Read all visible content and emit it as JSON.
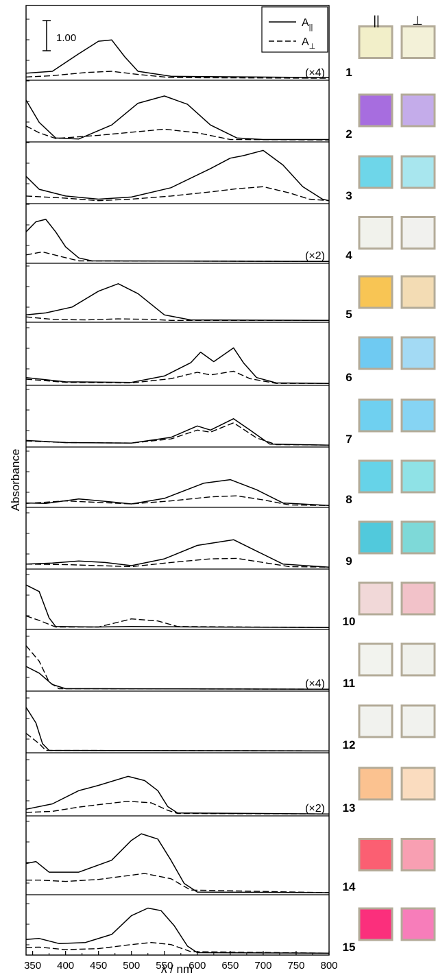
{
  "chart_data": {
    "type": "line",
    "xlabel": "λ / nm",
    "ylabel": "Absorbance",
    "xlim": [
      340,
      800
    ],
    "x_ticks": [
      350,
      400,
      450,
      500,
      550,
      600,
      650,
      700,
      750,
      800
    ],
    "scale_bar_label": "1.00",
    "legend": [
      {
        "label": "A",
        "subscript": "||",
        "style": "solid"
      },
      {
        "label": "A",
        "subscript": "⊥",
        "style": "dashed"
      }
    ],
    "legend_position": "top-right",
    "swatch_headers": [
      "||",
      "⊥"
    ],
    "panels": [
      {
        "label": "1",
        "multiplier": "(×4)",
        "swatch_parallel": "#f2efc9",
        "swatch_perp": "#f3f1d8",
        "par": [
          [
            340,
            0.09
          ],
          [
            380,
            0.12
          ],
          [
            420,
            0.4
          ],
          [
            450,
            0.6
          ],
          [
            470,
            0.62
          ],
          [
            490,
            0.35
          ],
          [
            510,
            0.12
          ],
          [
            560,
            0.04
          ],
          [
            800,
            0.02
          ]
        ],
        "perp": [
          [
            340,
            0.03
          ],
          [
            380,
            0.05
          ],
          [
            430,
            0.1
          ],
          [
            470,
            0.12
          ],
          [
            510,
            0.07
          ],
          [
            560,
            0.02
          ],
          [
            800,
            0.01
          ]
        ]
      },
      {
        "label": "2",
        "multiplier": "",
        "swatch_parallel": "#a76ddf",
        "swatch_perp": "#c4acea",
        "par": [
          [
            340,
            0.78
          ],
          [
            360,
            0.35
          ],
          [
            385,
            0.05
          ],
          [
            420,
            0.03
          ],
          [
            470,
            0.3
          ],
          [
            510,
            0.72
          ],
          [
            550,
            0.86
          ],
          [
            585,
            0.7
          ],
          [
            620,
            0.3
          ],
          [
            660,
            0.05
          ],
          [
            700,
            0.02
          ],
          [
            800,
            0.02
          ]
        ],
        "perp": [
          [
            340,
            0.28
          ],
          [
            360,
            0.15
          ],
          [
            385,
            0.04
          ],
          [
            450,
            0.1
          ],
          [
            550,
            0.22
          ],
          [
            600,
            0.15
          ],
          [
            650,
            0.02
          ],
          [
            800,
            0.01
          ]
        ]
      },
      {
        "label": "3",
        "multiplier": "",
        "swatch_parallel": "#6ed6e9",
        "swatch_perp": "#a8e6ee",
        "par": [
          [
            340,
            0.5
          ],
          [
            360,
            0.25
          ],
          [
            400,
            0.12
          ],
          [
            450,
            0.06
          ],
          [
            500,
            0.1
          ],
          [
            560,
            0.28
          ],
          [
            620,
            0.65
          ],
          [
            650,
            0.85
          ],
          [
            670,
            0.9
          ],
          [
            700,
            1.0
          ],
          [
            730,
            0.72
          ],
          [
            760,
            0.3
          ],
          [
            790,
            0.06
          ],
          [
            800,
            0.03
          ]
        ],
        "perp": [
          [
            340,
            0.12
          ],
          [
            400,
            0.08
          ],
          [
            450,
            0.03
          ],
          [
            500,
            0.06
          ],
          [
            560,
            0.12
          ],
          [
            620,
            0.2
          ],
          [
            660,
            0.26
          ],
          [
            700,
            0.3
          ],
          [
            740,
            0.18
          ],
          [
            770,
            0.06
          ],
          [
            800,
            0.03
          ]
        ]
      },
      {
        "label": "4",
        "multiplier": "(×2)",
        "swatch_parallel": "#f1f2ec",
        "swatch_perp": "#f1f1ee",
        "par": [
          [
            340,
            0.6
          ],
          [
            355,
            0.8
          ],
          [
            370,
            0.85
          ],
          [
            385,
            0.6
          ],
          [
            400,
            0.3
          ],
          [
            420,
            0.08
          ],
          [
            440,
            0.02
          ],
          [
            800,
            0.01
          ]
        ],
        "perp": [
          [
            340,
            0.14
          ],
          [
            365,
            0.2
          ],
          [
            395,
            0.1
          ],
          [
            420,
            0.02
          ],
          [
            800,
            0.01
          ]
        ]
      },
      {
        "label": "5",
        "multiplier": "",
        "swatch_parallel": "#f8c554",
        "swatch_perp": "#f3dcb4",
        "par": [
          [
            340,
            0.12
          ],
          [
            370,
            0.16
          ],
          [
            410,
            0.28
          ],
          [
            450,
            0.6
          ],
          [
            480,
            0.75
          ],
          [
            510,
            0.55
          ],
          [
            550,
            0.12
          ],
          [
            590,
            0.02
          ],
          [
            800,
            0.01
          ]
        ],
        "perp": [
          [
            340,
            0.08
          ],
          [
            380,
            0.03
          ],
          [
            430,
            0.02
          ],
          [
            480,
            0.04
          ],
          [
            530,
            0.03
          ],
          [
            560,
            0.01
          ],
          [
            800,
            0.01
          ]
        ]
      },
      {
        "label": "6",
        "multiplier": "",
        "swatch_parallel": "#6fcaf2",
        "swatch_perp": "#a3daf4",
        "par": [
          [
            340,
            0.12
          ],
          [
            400,
            0.04
          ],
          [
            500,
            0.03
          ],
          [
            550,
            0.15
          ],
          [
            590,
            0.4
          ],
          [
            605,
            0.6
          ],
          [
            625,
            0.42
          ],
          [
            655,
            0.68
          ],
          [
            670,
            0.4
          ],
          [
            690,
            0.12
          ],
          [
            720,
            0.02
          ],
          [
            800,
            0.01
          ]
        ],
        "perp": [
          [
            340,
            0.09
          ],
          [
            400,
            0.03
          ],
          [
            500,
            0.02
          ],
          [
            560,
            0.1
          ],
          [
            600,
            0.22
          ],
          [
            620,
            0.17
          ],
          [
            655,
            0.24
          ],
          [
            680,
            0.1
          ],
          [
            720,
            0.01
          ],
          [
            800,
            0.01
          ]
        ]
      },
      {
        "label": "7",
        "multiplier": "",
        "swatch_parallel": "#6fd0f0",
        "swatch_perp": "#86d4f3",
        "par": [
          [
            340,
            0.1
          ],
          [
            400,
            0.06
          ],
          [
            500,
            0.05
          ],
          [
            560,
            0.16
          ],
          [
            600,
            0.38
          ],
          [
            620,
            0.3
          ],
          [
            655,
            0.52
          ],
          [
            680,
            0.3
          ],
          [
            710,
            0.03
          ],
          [
            800,
            0.01
          ]
        ],
        "perp": [
          [
            340,
            0.09
          ],
          [
            400,
            0.06
          ],
          [
            500,
            0.05
          ],
          [
            560,
            0.13
          ],
          [
            600,
            0.3
          ],
          [
            620,
            0.26
          ],
          [
            655,
            0.44
          ],
          [
            690,
            0.15
          ],
          [
            720,
            0.02
          ],
          [
            800,
            0.01
          ]
        ]
      },
      {
        "label": "8",
        "multiplier": "",
        "swatch_parallel": "#66d3e8",
        "swatch_perp": "#8fe2e6",
        "par": [
          [
            340,
            0.06
          ],
          [
            370,
            0.05
          ],
          [
            420,
            0.14
          ],
          [
            470,
            0.08
          ],
          [
            500,
            0.04
          ],
          [
            550,
            0.15
          ],
          [
            610,
            0.45
          ],
          [
            650,
            0.52
          ],
          [
            690,
            0.32
          ],
          [
            730,
            0.06
          ],
          [
            800,
            0.01
          ]
        ],
        "perp": [
          [
            340,
            0.05
          ],
          [
            400,
            0.1
          ],
          [
            450,
            0.07
          ],
          [
            500,
            0.04
          ],
          [
            560,
            0.1
          ],
          [
            620,
            0.18
          ],
          [
            660,
            0.2
          ],
          [
            700,
            0.12
          ],
          [
            740,
            0.02
          ],
          [
            800,
            0.01
          ]
        ]
      },
      {
        "label": "9",
        "multiplier": "",
        "swatch_parallel": "#51c9dc",
        "swatch_perp": "#7ed9d8",
        "par": [
          [
            340,
            0.07
          ],
          [
            380,
            0.09
          ],
          [
            420,
            0.13
          ],
          [
            460,
            0.1
          ],
          [
            500,
            0.04
          ],
          [
            550,
            0.17
          ],
          [
            600,
            0.43
          ],
          [
            655,
            0.54
          ],
          [
            690,
            0.32
          ],
          [
            730,
            0.07
          ],
          [
            800,
            0.01
          ]
        ],
        "perp": [
          [
            340,
            0.07
          ],
          [
            400,
            0.06
          ],
          [
            450,
            0.04
          ],
          [
            500,
            0.02
          ],
          [
            560,
            0.1
          ],
          [
            620,
            0.17
          ],
          [
            660,
            0.18
          ],
          [
            700,
            0.1
          ],
          [
            740,
            0.02
          ],
          [
            800,
            0.01
          ]
        ]
      },
      {
        "label": "10",
        "multiplier": "",
        "swatch_parallel": "#f1d8d8",
        "swatch_perp": "#f2c2c9",
        "par": [
          [
            340,
            0.85
          ],
          [
            360,
            0.72
          ],
          [
            375,
            0.2
          ],
          [
            385,
            0.03
          ],
          [
            450,
            0.02
          ],
          [
            500,
            0.03
          ],
          [
            600,
            0.02
          ],
          [
            800,
            0.01
          ]
        ],
        "perp": [
          [
            340,
            0.24
          ],
          [
            360,
            0.15
          ],
          [
            385,
            0.02
          ],
          [
            450,
            0.02
          ],
          [
            500,
            0.18
          ],
          [
            540,
            0.14
          ],
          [
            570,
            0.03
          ],
          [
            800,
            0.01
          ]
        ]
      },
      {
        "label": "11",
        "multiplier": "(×4)",
        "swatch_parallel": "#f2f3ee",
        "swatch_perp": "#f0f1ec",
        "par": [
          [
            340,
            0.45
          ],
          [
            360,
            0.32
          ],
          [
            380,
            0.1
          ],
          [
            400,
            0.02
          ],
          [
            800,
            0.01
          ]
        ],
        "perp": [
          [
            340,
            0.85
          ],
          [
            360,
            0.55
          ],
          [
            375,
            0.15
          ],
          [
            390,
            0.02
          ],
          [
            800,
            0.01
          ]
        ]
      },
      {
        "label": "12",
        "multiplier": "",
        "swatch_parallel": "#f1f2ee",
        "swatch_perp": "#f1f2ee",
        "par": [
          [
            340,
            0.85
          ],
          [
            355,
            0.55
          ],
          [
            365,
            0.15
          ],
          [
            375,
            0.02
          ],
          [
            800,
            0.01
          ]
        ],
        "perp": [
          [
            340,
            0.35
          ],
          [
            360,
            0.15
          ],
          [
            370,
            0.02
          ],
          [
            800,
            0.01
          ]
        ]
      },
      {
        "label": "13",
        "multiplier": "(×2)",
        "swatch_parallel": "#fbc290",
        "swatch_perp": "#fadcbf",
        "par": [
          [
            340,
            0.1
          ],
          [
            380,
            0.2
          ],
          [
            420,
            0.45
          ],
          [
            450,
            0.55
          ],
          [
            495,
            0.72
          ],
          [
            520,
            0.64
          ],
          [
            540,
            0.45
          ],
          [
            555,
            0.15
          ],
          [
            570,
            0.03
          ],
          [
            800,
            0.01
          ]
        ],
        "perp": [
          [
            340,
            0.04
          ],
          [
            380,
            0.06
          ],
          [
            420,
            0.14
          ],
          [
            460,
            0.2
          ],
          [
            495,
            0.25
          ],
          [
            530,
            0.22
          ],
          [
            555,
            0.08
          ],
          [
            570,
            0.02
          ],
          [
            800,
            0.01
          ]
        ]
      },
      {
        "label": "14",
        "multiplier": "",
        "swatch_parallel": "#fb5f72",
        "swatch_perp": "#f89fb2",
        "par": [
          [
            340,
            0.45
          ],
          [
            355,
            0.48
          ],
          [
            375,
            0.32
          ],
          [
            420,
            0.32
          ],
          [
            470,
            0.5
          ],
          [
            500,
            0.8
          ],
          [
            515,
            0.9
          ],
          [
            540,
            0.82
          ],
          [
            560,
            0.5
          ],
          [
            580,
            0.15
          ],
          [
            600,
            0.02
          ],
          [
            800,
            0.01
          ]
        ],
        "perp": [
          [
            340,
            0.2
          ],
          [
            360,
            0.2
          ],
          [
            400,
            0.18
          ],
          [
            450,
            0.21
          ],
          [
            520,
            0.3
          ],
          [
            560,
            0.22
          ],
          [
            590,
            0.05
          ],
          [
            800,
            0.01
          ]
        ]
      },
      {
        "label": "15",
        "multiplier": "",
        "swatch_parallel": "#fb2f7c",
        "swatch_perp": "#f77dba",
        "par": [
          [
            340,
            0.28
          ],
          [
            360,
            0.3
          ],
          [
            390,
            0.2
          ],
          [
            430,
            0.22
          ],
          [
            470,
            0.38
          ],
          [
            500,
            0.75
          ],
          [
            525,
            0.9
          ],
          [
            545,
            0.85
          ],
          [
            565,
            0.55
          ],
          [
            585,
            0.15
          ],
          [
            600,
            0.02
          ],
          [
            800,
            0.01
          ]
        ],
        "perp": [
          [
            340,
            0.12
          ],
          [
            360,
            0.13
          ],
          [
            400,
            0.08
          ],
          [
            450,
            0.1
          ],
          [
            500,
            0.18
          ],
          [
            530,
            0.22
          ],
          [
            560,
            0.18
          ],
          [
            590,
            0.04
          ],
          [
            800,
            0.01
          ]
        ]
      }
    ]
  }
}
